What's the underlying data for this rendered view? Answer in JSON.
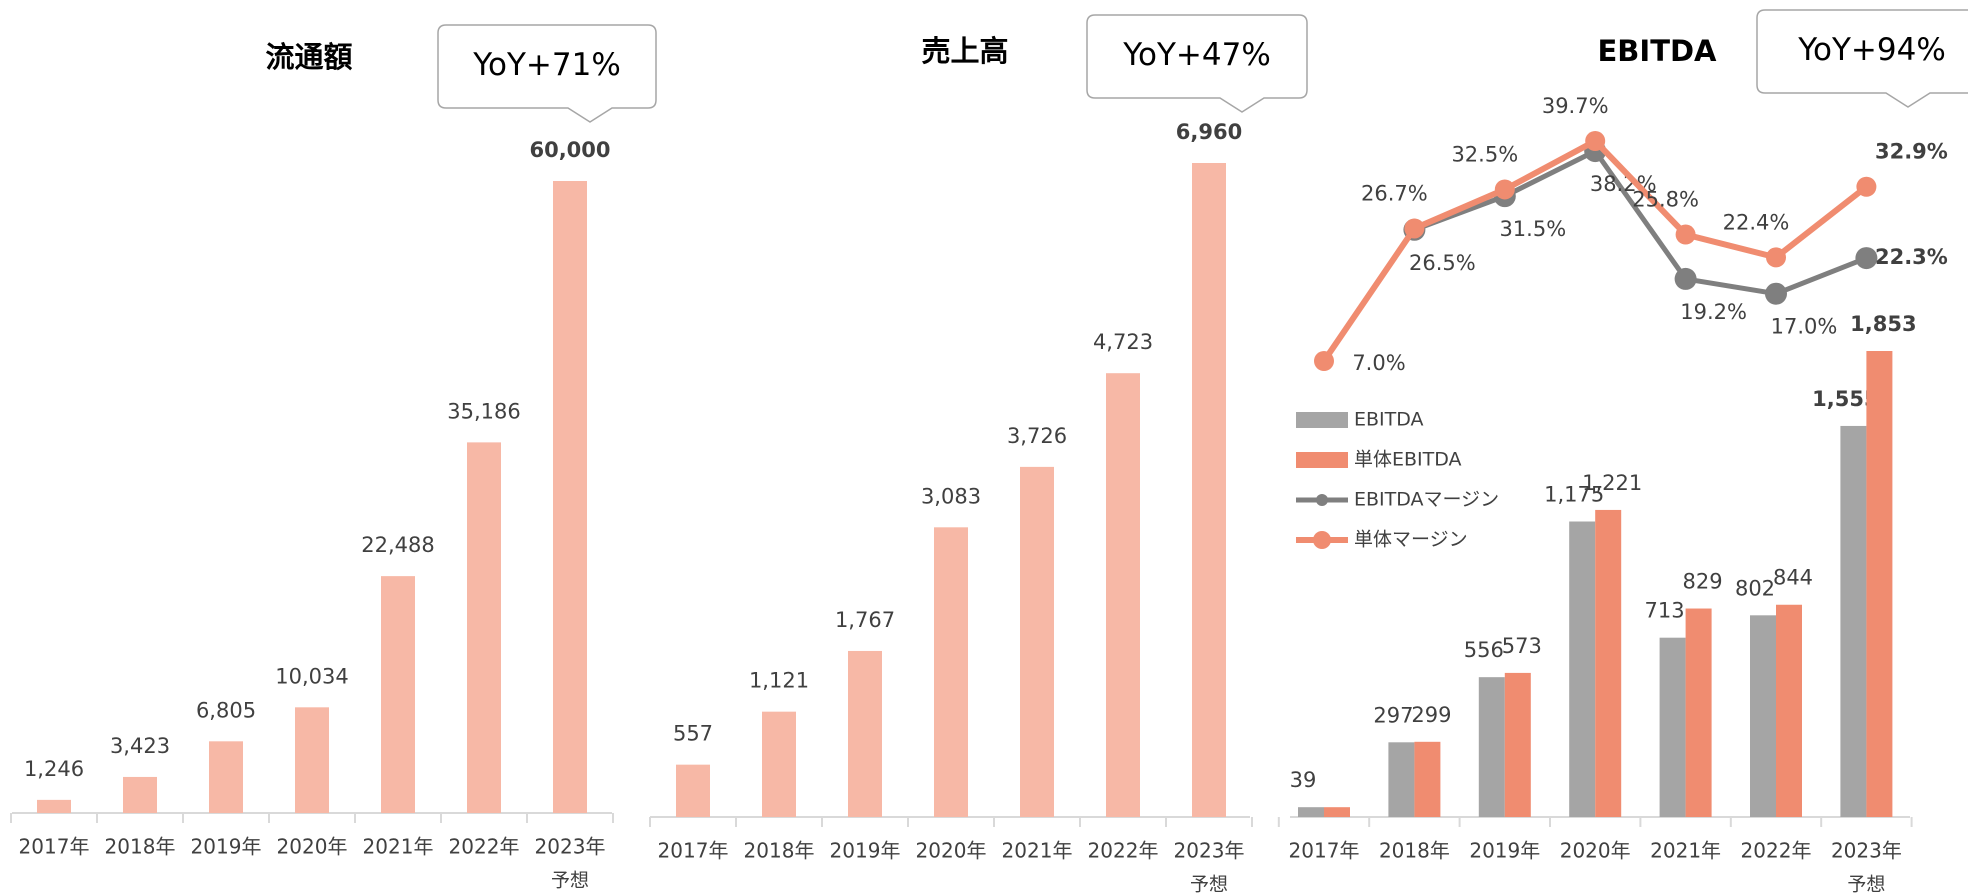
{
  "chart_data": [
    {
      "type": "bar",
      "title": "流通額",
      "callout": "YoY+71%",
      "categories": [
        "2017年",
        "2018年",
        "2019年",
        "2020年",
        "2021年",
        "2022年",
        "2023年"
      ],
      "forecast_note": "予想",
      "series": [
        {
          "name": null,
          "color": "#f7b8a6",
          "values": [
            1246,
            3423,
            6805,
            10034,
            22488,
            35186,
            60000
          ],
          "value_labels": [
            "1,246",
            "3,423",
            "6,805",
            "10,034",
            "22,488",
            "35,186",
            "60,000"
          ]
        }
      ]
    },
    {
      "type": "bar",
      "title": "売上高",
      "callout": "YoY+47%",
      "categories": [
        "2017年",
        "2018年",
        "2019年",
        "2020年",
        "2021年",
        "2022年",
        "2023年"
      ],
      "forecast_note": "予想",
      "series": [
        {
          "name": null,
          "color": "#f7b8a6",
          "values": [
            557,
            1121,
            1767,
            3083,
            3726,
            4723,
            6960
          ],
          "value_labels": [
            "557",
            "1,121",
            "1,767",
            "3,083",
            "3,726",
            "4,723",
            "6,960"
          ]
        }
      ]
    },
    {
      "type": "bar_line",
      "title": "EBITDA",
      "callout": "YoY+94%",
      "categories": [
        "2017年",
        "2018年",
        "2019年",
        "2020年",
        "2021年",
        "2022年",
        "2023年"
      ],
      "forecast_note": "予想",
      "series": [
        {
          "name": "EBITDA",
          "kind": "bar",
          "color": "#a5a5a5",
          "values": [
            39,
            297,
            556,
            1175,
            713,
            802,
            1555
          ],
          "value_labels": [
            "39",
            "297",
            "556",
            "1,175",
            "713",
            "802",
            "1,555"
          ]
        },
        {
          "name": "単体EBITDA",
          "kind": "bar",
          "color": "#f08c70",
          "values": [
            39,
            299,
            573,
            1221,
            829,
            844,
            1853
          ],
          "value_labels": [
            null,
            "299",
            "573",
            "1,221",
            "829",
            "844",
            "1,853"
          ]
        },
        {
          "name": "EBITDAマージン",
          "kind": "line",
          "color": "#7f7f7f",
          "values": [
            null,
            26.5,
            31.5,
            38.2,
            19.2,
            17.0,
            22.3
          ],
          "value_labels": [
            null,
            "26.5%",
            "31.5%",
            "38.2%",
            "19.2%",
            "17.0%",
            "22.3%"
          ]
        },
        {
          "name": "単体マージン",
          "kind": "line",
          "color": "#f08c70",
          "values": [
            7.0,
            26.7,
            32.5,
            39.7,
            25.8,
            22.4,
            32.9
          ],
          "value_labels": [
            "7.0%",
            "26.7%",
            "32.5%",
            "39.7%",
            "25.8%",
            "22.4%",
            "32.9%"
          ]
        }
      ]
    }
  ]
}
